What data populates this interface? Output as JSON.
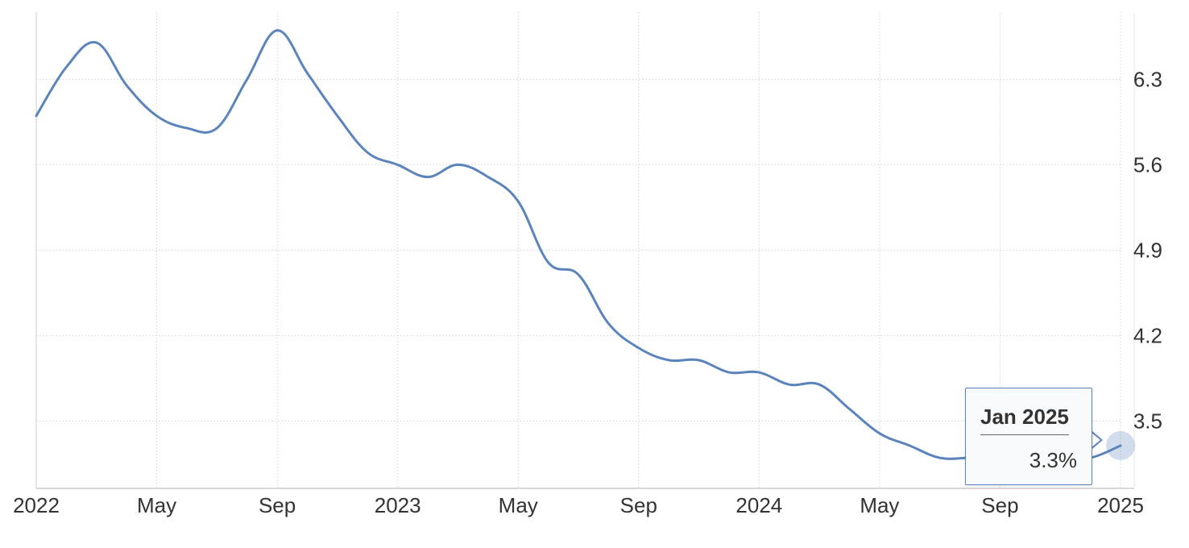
{
  "chart_data": {
    "type": "line",
    "title": "",
    "xlabel": "",
    "ylabel": "",
    "x_tick_labels": [
      "2022",
      "May",
      "Sep",
      "2023",
      "May",
      "Sep",
      "2024",
      "May",
      "Sep",
      "2025"
    ],
    "y_ticks": [
      "3.5",
      "4.2",
      "4.9",
      "5.6",
      "6.3"
    ],
    "ylim": [
      2.95,
      6.85
    ],
    "grid": true,
    "y_axis_side": "right",
    "line_color": "#5b84bd",
    "series": [
      {
        "values": [
          [
            "2022-01",
            6.0
          ],
          [
            "2022-02",
            6.4
          ],
          [
            "2022-03",
            6.6
          ],
          [
            "2022-04",
            6.25
          ],
          [
            "2022-05",
            6.0
          ],
          [
            "2022-06",
            5.9
          ],
          [
            "2022-07",
            5.9
          ],
          [
            "2022-08",
            6.3
          ],
          [
            "2022-09",
            6.7
          ],
          [
            "2022-10",
            6.35
          ],
          [
            "2022-11",
            6.0
          ],
          [
            "2022-12",
            5.7
          ],
          [
            "2023-01",
            5.6
          ],
          [
            "2023-02",
            5.5
          ],
          [
            "2023-03",
            5.6
          ],
          [
            "2023-04",
            5.5
          ],
          [
            "2023-05",
            5.3
          ],
          [
            "2023-06",
            4.8
          ],
          [
            "2023-07",
            4.7
          ],
          [
            "2023-08",
            4.3
          ],
          [
            "2023-09",
            4.1
          ],
          [
            "2023-10",
            4.0
          ],
          [
            "2023-11",
            4.0
          ],
          [
            "2023-12",
            3.9
          ],
          [
            "2024-01",
            3.9
          ],
          [
            "2024-02",
            3.8
          ],
          [
            "2024-03",
            3.8
          ],
          [
            "2024-04",
            3.6
          ],
          [
            "2024-05",
            3.4
          ],
          [
            "2024-06",
            3.3
          ],
          [
            "2024-07",
            3.2
          ],
          [
            "2024-08",
            3.2
          ],
          [
            "2024-09",
            3.2
          ],
          [
            "2024-10",
            3.2
          ],
          [
            "2024-11",
            3.2
          ],
          [
            "2024-12",
            3.2
          ],
          [
            "2025-01",
            3.3
          ]
        ]
      }
    ]
  },
  "tooltip": {
    "date": "Jan 2025",
    "value": "3.3%"
  }
}
